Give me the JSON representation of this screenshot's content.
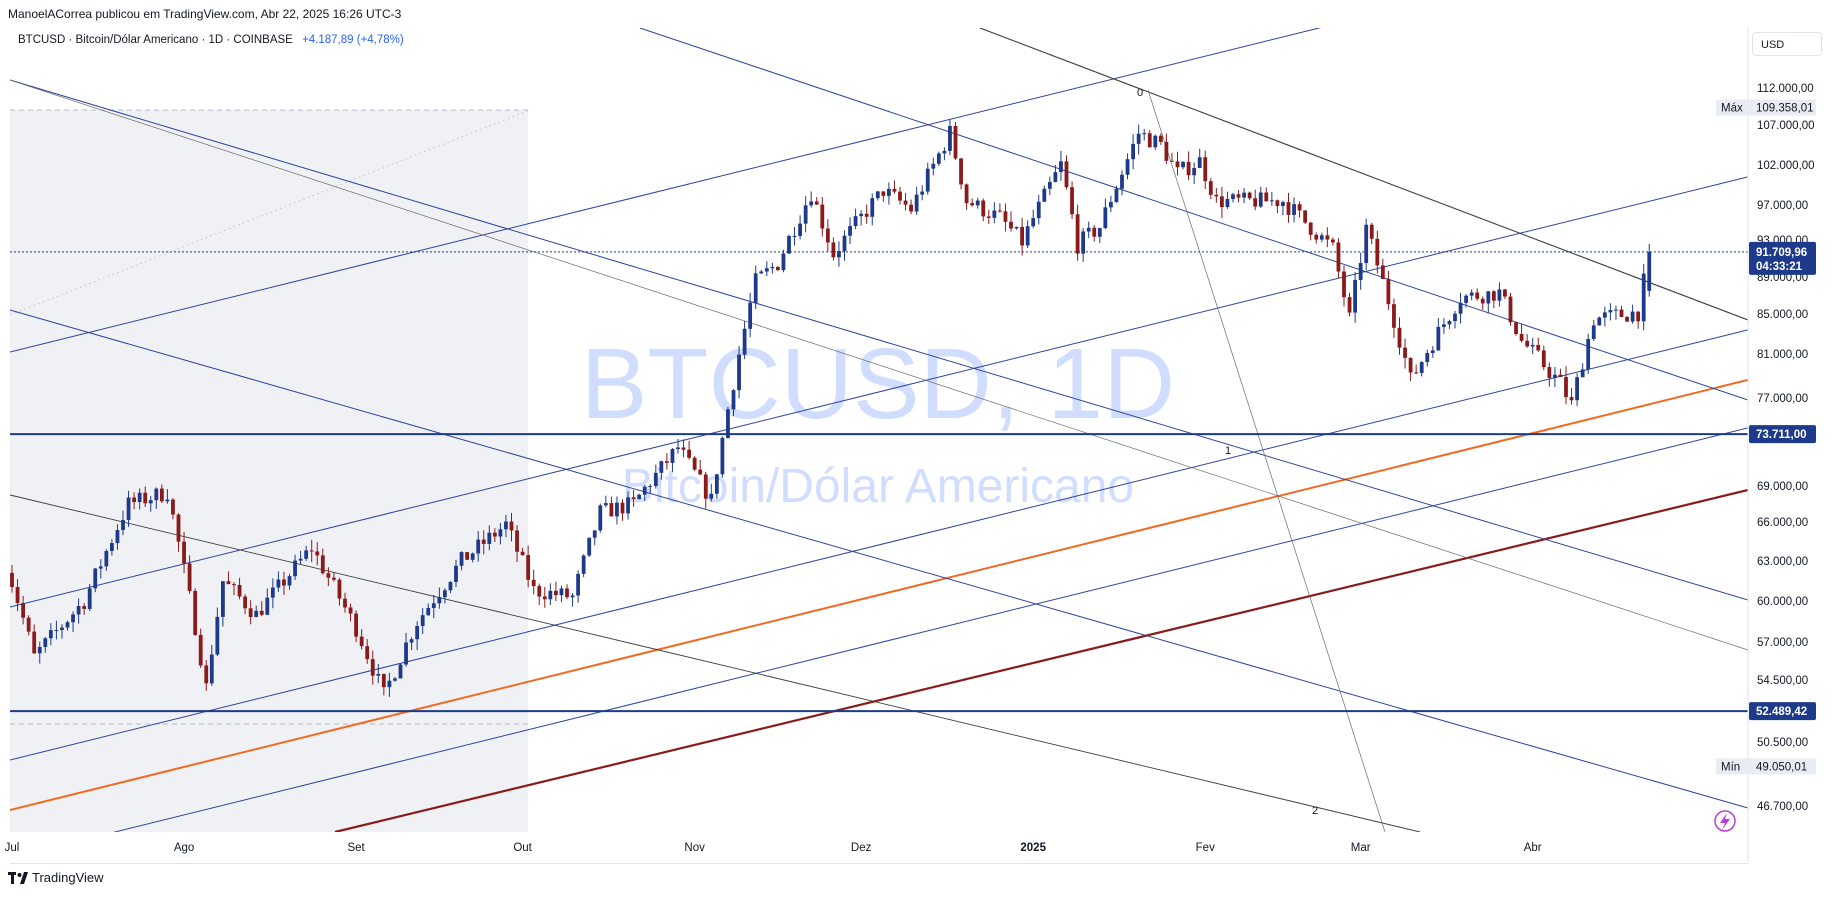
{
  "header": {
    "published": "ManoelACorrea publicou em TradingView.com, Abr 22, 2025 16:26 UTC-3"
  },
  "legend": {
    "symbol": "BTCUSD",
    "name": "Bitcoin/Dólar Americano",
    "interval": "1D",
    "exchange": "COINBASE",
    "change": "+4.187,89 (+4,78%)"
  },
  "watermark": {
    "line1": "BTCUSD, 1D",
    "line2": "Bitcoin/Dólar Americano"
  },
  "currency_button": "USD",
  "footer": {
    "brand": "TradingView"
  },
  "fib_labels": [
    "0",
    "1",
    "2"
  ],
  "colors": {
    "up": "#1e3a8a",
    "down": "#8b1a1a",
    "channel": "#2a44a0",
    "fan": "#6b6b6b",
    "orange": "#f06a21",
    "darkred": "#8b1a1a",
    "shade": "#f0f1f4"
  },
  "chart_data": {
    "type": "candlestick",
    "symbol": "BTCUSD",
    "timeframe": "1D",
    "x_ticks": [
      "Jul",
      "Ago",
      "Set",
      "Out",
      "Nov",
      "Dez",
      "2025",
      "Fev",
      "Mar",
      "Abr"
    ],
    "y_ticks": [
      "112.000,00",
      "107.000,00",
      "102.000,00",
      "97.000,00",
      "93.000,00",
      "89.000,00",
      "85.000,00",
      "81.000,00",
      "77.000,00",
      "69.000,00",
      "66.000,00",
      "63.000,00",
      "60.000,00",
      "57.000,00",
      "54.500,00",
      "50.500,00",
      "46.700,00"
    ],
    "ylim": [
      45000,
      115000
    ],
    "price_tags": [
      {
        "label": "Máx",
        "value": "109.358,01",
        "price": 109358.01
      },
      {
        "label": "",
        "value": "91.709,96",
        "price": 91709.96,
        "countdown": "04:33:21"
      },
      {
        "label": "",
        "value": "73.711,00",
        "price": 73711
      },
      {
        "label": "",
        "value": "52.489,42",
        "price": 52489.42
      },
      {
        "label": "Mín",
        "value": "49.050,01",
        "price": 49050.01
      }
    ],
    "horizontal_levels": [
      73711,
      52489.42
    ],
    "last_price": 91709.96,
    "anchors": [
      [
        "2024-06-30",
        62800
      ],
      [
        "2024-07-05",
        56000
      ],
      [
        "2024-07-14",
        60000
      ],
      [
        "2024-07-22",
        67500
      ],
      [
        "2024-07-29",
        68500
      ],
      [
        "2024-08-05",
        54000
      ],
      [
        "2024-08-08",
        61500
      ],
      [
        "2024-08-14",
        59000
      ],
      [
        "2024-08-24",
        64000
      ],
      [
        "2024-09-01",
        58000
      ],
      [
        "2024-09-06",
        53500
      ],
      [
        "2024-09-12",
        58500
      ],
      [
        "2024-09-20",
        63000
      ],
      [
        "2024-09-28",
        65800
      ],
      [
        "2024-10-03",
        60800
      ],
      [
        "2024-10-10",
        60300
      ],
      [
        "2024-10-15",
        66800
      ],
      [
        "2024-10-21",
        67500
      ],
      [
        "2024-10-29",
        72500
      ],
      [
        "2024-11-04",
        67800
      ],
      [
        "2024-11-07",
        76000
      ],
      [
        "2024-11-12",
        88500
      ],
      [
        "2024-11-16",
        90500
      ],
      [
        "2024-11-22",
        98500
      ],
      [
        "2024-11-26",
        91500
      ],
      [
        "2024-12-05",
        98800
      ],
      [
        "2024-12-10",
        96500
      ],
      [
        "2024-12-17",
        106000
      ],
      [
        "2024-12-20",
        97500
      ],
      [
        "2024-12-26",
        95500
      ],
      [
        "2024-12-30",
        92800
      ],
      [
        "2025-01-06",
        102000
      ],
      [
        "2025-01-09",
        92500
      ],
      [
        "2025-01-13",
        94500
      ],
      [
        "2025-01-20",
        106000
      ],
      [
        "2025-01-24",
        104500
      ],
      [
        "2025-01-27",
        101000
      ],
      [
        "2025-01-31",
        102500
      ],
      [
        "2025-02-03",
        97500
      ],
      [
        "2025-02-15",
        97500
      ],
      [
        "2025-02-24",
        92000
      ],
      [
        "2025-02-27",
        84500
      ],
      [
        "2025-03-02",
        94300
      ],
      [
        "2025-03-10",
        78600
      ],
      [
        "2025-03-19",
        86800
      ],
      [
        "2025-03-26",
        87300
      ],
      [
        "2025-03-30",
        82300
      ],
      [
        "2025-04-06",
        78300
      ],
      [
        "2025-04-08",
        76400
      ],
      [
        "2025-04-12",
        84500
      ],
      [
        "2025-04-20",
        85200
      ],
      [
        "2025-04-22",
        91710
      ]
    ]
  }
}
